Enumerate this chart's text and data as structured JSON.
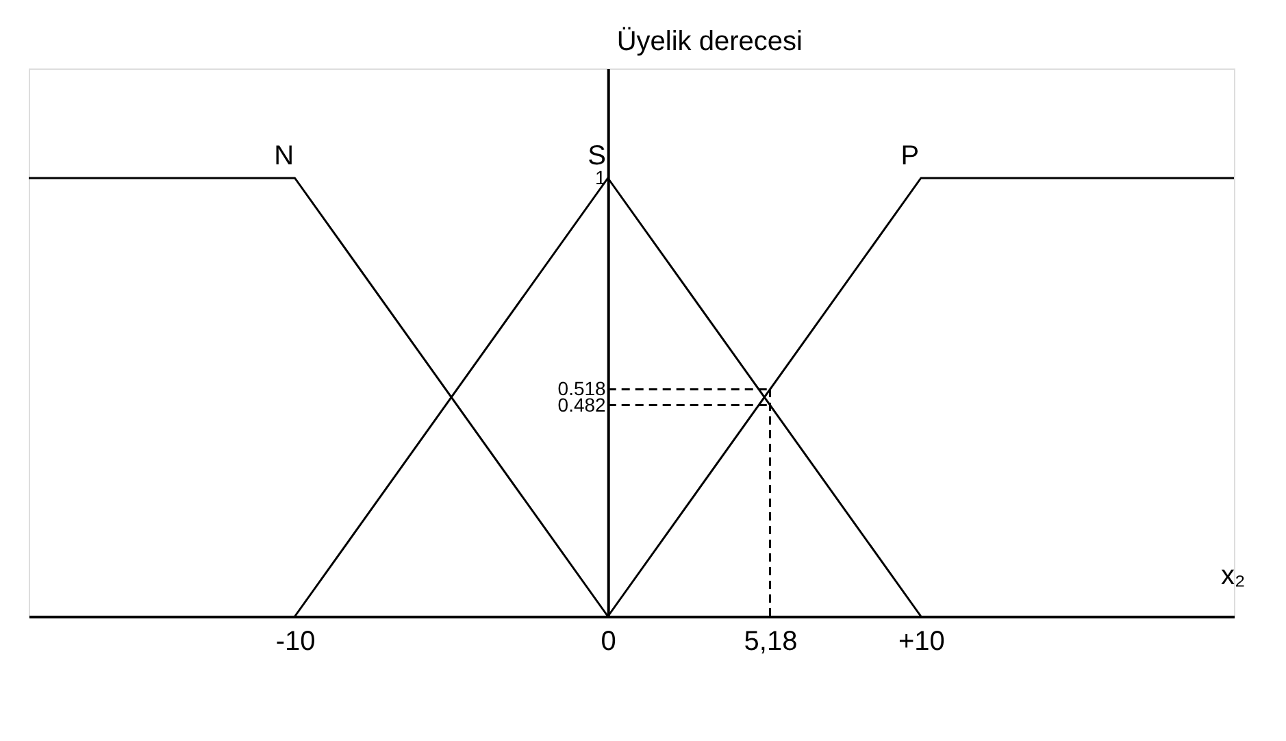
{
  "chart_data": {
    "type": "line",
    "xlabel": "x₂",
    "ylabel": "Üyelik derecesi",
    "xlim": [
      -18.5,
      20
    ],
    "ylim": [
      0,
      1.25
    ],
    "xticks": [
      {
        "value": -10,
        "label": "-10"
      },
      0,
      {
        "value": 5.18,
        "label": "5,18"
      },
      {
        "value": 10,
        "label": "+10"
      }
    ],
    "yticks": [
      0.482,
      0.518,
      1
    ],
    "grid": false,
    "marker": "none",
    "series": [
      {
        "name": "N",
        "color": "#000000",
        "x": [
          -18.5,
          -10,
          0
        ],
        "values": [
          1,
          1,
          0
        ]
      },
      {
        "name": "S",
        "color": "#000000",
        "x": [
          -10,
          0,
          10
        ],
        "values": [
          0,
          1,
          0
        ]
      },
      {
        "name": "P",
        "color": "#000000",
        "x": [
          0,
          10,
          20
        ],
        "values": [
          0,
          1,
          1
        ]
      },
      {
        "color": "#000000",
        "line_style": "dashed",
        "x": [
          0,
          5.18
        ],
        "values": [
          0.518,
          0.518
        ]
      },
      {
        "color": "#000000",
        "line_style": "dashed",
        "x": [
          0,
          5.18
        ],
        "values": [
          0.482,
          0.482
        ]
      },
      {
        "color": "#000000",
        "line_style": "dashed",
        "x": [
          5.18,
          5.18
        ],
        "values": [
          0,
          0.518
        ]
      }
    ]
  }
}
